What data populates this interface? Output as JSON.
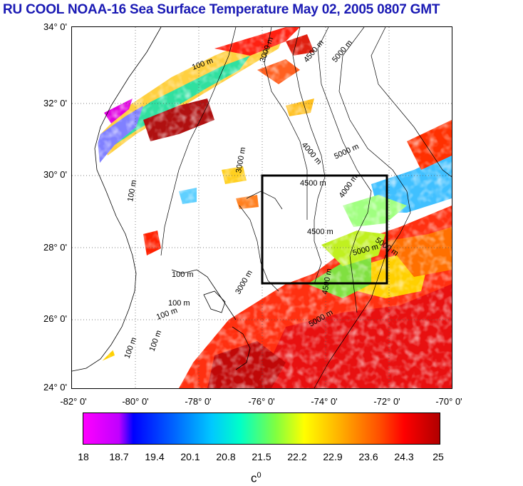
{
  "title": "RU COOL  NOAA-16 Sea Surface Temperature May 02, 2005 0807 GMT",
  "lat_labels": [
    "34° 0'",
    "32° 0'",
    "30° 0'",
    "28° 0'",
    "26° 0'",
    "24° 0'"
  ],
  "lon_labels": [
    "-82° 0'",
    "-80° 0'",
    "-78° 0'",
    "-76° 0'",
    "-74° 0'",
    "-72° 0'",
    "-70° 0'"
  ],
  "contour_labels": [
    "3000 m",
    "4500 m",
    "5000 m",
    "100 m",
    "4000 m",
    "5000 m",
    "3000 m",
    "4500 m",
    "4000 m",
    "100 m",
    "4500 m",
    "5000 m",
    "5000 m",
    "3000 m",
    "100 m",
    "100 m",
    "100 m",
    "5000 m",
    "4500 m",
    "100 m",
    "100 m"
  ],
  "colorbar": {
    "ticks": [
      "18",
      "18.7",
      "19.4",
      "20.1",
      "20.8",
      "21.5",
      "22.2",
      "22.9",
      "23.6",
      "24.3",
      "25"
    ],
    "unit": "c",
    "unit_sup": "0"
  },
  "map": {
    "lat_range": [
      24,
      34
    ],
    "lon_range": [
      -82,
      -70
    ],
    "box_lat": [
      27,
      30
    ],
    "box_lon": [
      -76,
      -72
    ],
    "land_color": "#ffffff",
    "coast_color": "#000000"
  }
}
